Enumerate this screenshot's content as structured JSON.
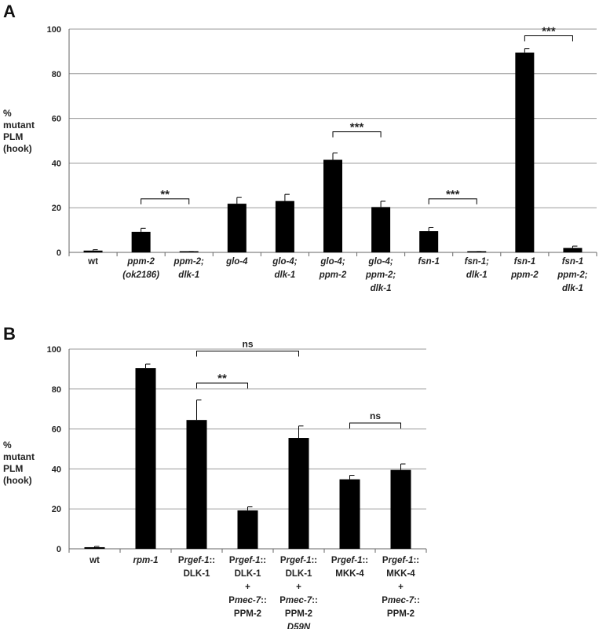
{
  "chart_data": [
    {
      "type": "bar",
      "panel": "A",
      "ylabel_lines": [
        "%",
        "mutant",
        "PLM",
        "(hook)"
      ],
      "ylim": [
        0,
        100
      ],
      "yticks": [
        0,
        20,
        40,
        60,
        80,
        100
      ],
      "grid": true,
      "categories": [
        [
          {
            "t": "wt",
            "i": false
          }
        ],
        [
          {
            "t": "ppm-2",
            "i": true
          },
          {
            "t": "(ok2186)",
            "i": true
          }
        ],
        [
          {
            "t": "ppm-2;",
            "i": true
          },
          {
            "t": "dlk-1",
            "i": true
          }
        ],
        [
          {
            "t": "glo-4",
            "i": true
          }
        ],
        [
          {
            "t": "glo-4;",
            "i": true
          },
          {
            "t": "dlk-1",
            "i": true
          }
        ],
        [
          {
            "t": "glo-4;",
            "i": true
          },
          {
            "t": "ppm-2",
            "i": true
          }
        ],
        [
          {
            "t": "glo-4;",
            "i": true
          },
          {
            "t": "ppm-2;",
            "i": true
          },
          {
            "t": "dlk-1",
            "i": true
          }
        ],
        [
          {
            "t": "fsn-1",
            "i": true
          }
        ],
        [
          {
            "t": "fsn-1;",
            "i": true
          },
          {
            "t": "dlk-1",
            "i": true
          }
        ],
        [
          {
            "t": "fsn-1",
            "i": true
          },
          {
            "t": "ppm-2",
            "i": true
          }
        ],
        [
          {
            "t": "fsn-1",
            "i": true
          },
          {
            "t": "ppm-2;",
            "i": true
          },
          {
            "t": "dlk-1",
            "i": true
          }
        ]
      ],
      "values": [
        0.8,
        9.2,
        0.3,
        21.8,
        23.0,
        41.5,
        20.3,
        9.5,
        0.3,
        89.5,
        2.0
      ],
      "errors": [
        0.4,
        1.6,
        0.1,
        2.8,
        3.0,
        3.0,
        2.6,
        1.6,
        0.1,
        1.8,
        0.8
      ],
      "significance": [
        {
          "from": 1,
          "to": 2,
          "label": "**",
          "y": 24
        },
        {
          "from": 5,
          "to": 6,
          "label": "***",
          "y": 54
        },
        {
          "from": 7,
          "to": 8,
          "label": "***",
          "y": 24
        },
        {
          "from": 9,
          "to": 10,
          "label": "***",
          "y": 97
        }
      ]
    },
    {
      "type": "bar",
      "panel": "B",
      "ylabel_lines": [
        "%",
        "mutant",
        "PLM",
        "(hook)"
      ],
      "ylim": [
        0,
        100
      ],
      "yticks": [
        0,
        20,
        40,
        60,
        80,
        100
      ],
      "grid": true,
      "categories": [
        [
          {
            "t": "wt",
            "i": false
          }
        ],
        [
          {
            "t": "rpm-1",
            "i": true
          }
        ],
        [
          [
            {
              "t": "P",
              "i": false
            },
            {
              "t": "rgef-1",
              "i": true
            },
            {
              "t": "::",
              "i": false
            }
          ],
          {
            "t": "DLK-1",
            "i": false
          }
        ],
        [
          [
            {
              "t": "P",
              "i": false
            },
            {
              "t": "rgef-1",
              "i": true
            },
            {
              "t": "::",
              "i": false
            }
          ],
          {
            "t": "DLK-1",
            "i": false
          },
          {
            "t": "+",
            "i": false
          },
          [
            {
              "t": "P",
              "i": false
            },
            {
              "t": "mec-7",
              "i": true
            },
            {
              "t": "::",
              "i": false
            }
          ],
          {
            "t": "PPM-2",
            "i": false
          }
        ],
        [
          [
            {
              "t": "P",
              "i": false
            },
            {
              "t": "rgef-1",
              "i": true
            },
            {
              "t": "::",
              "i": false
            }
          ],
          {
            "t": "DLK-1",
            "i": false
          },
          {
            "t": "+",
            "i": false
          },
          [
            {
              "t": "P",
              "i": false
            },
            {
              "t": "mec-7",
              "i": true
            },
            {
              "t": "::",
              "i": false
            }
          ],
          {
            "t": "PPM-2",
            "i": false
          },
          {
            "t": "D59N",
            "i": true
          }
        ],
        [
          [
            {
              "t": "P",
              "i": false
            },
            {
              "t": "rgef-1",
              "i": true
            },
            {
              "t": "::",
              "i": false
            }
          ],
          {
            "t": "MKK-4",
            "i": false
          }
        ],
        [
          [
            {
              "t": "P",
              "i": false
            },
            {
              "t": "rgef-1",
              "i": true
            },
            {
              "t": "::",
              "i": false
            }
          ],
          {
            "t": "MKK-4",
            "i": false
          },
          {
            "t": "+",
            "i": false
          },
          [
            {
              "t": "P",
              "i": false
            },
            {
              "t": "mec-7",
              "i": true
            },
            {
              "t": "::",
              "i": false
            }
          ],
          {
            "t": "PPM-2",
            "i": false
          }
        ]
      ],
      "values": [
        0.8,
        90.5,
        64.5,
        19.2,
        55.5,
        34.8,
        39.5
      ],
      "errors": [
        0.4,
        2.0,
        10.0,
        1.8,
        6.0,
        2.0,
        3.0
      ],
      "significance": [
        {
          "from": 2,
          "to": 3,
          "label": "**",
          "y": 83
        },
        {
          "from": 2,
          "to": 4,
          "label": "ns",
          "y": 99
        },
        {
          "from": 5,
          "to": 6,
          "label": "ns",
          "y": 63
        }
      ]
    }
  ]
}
